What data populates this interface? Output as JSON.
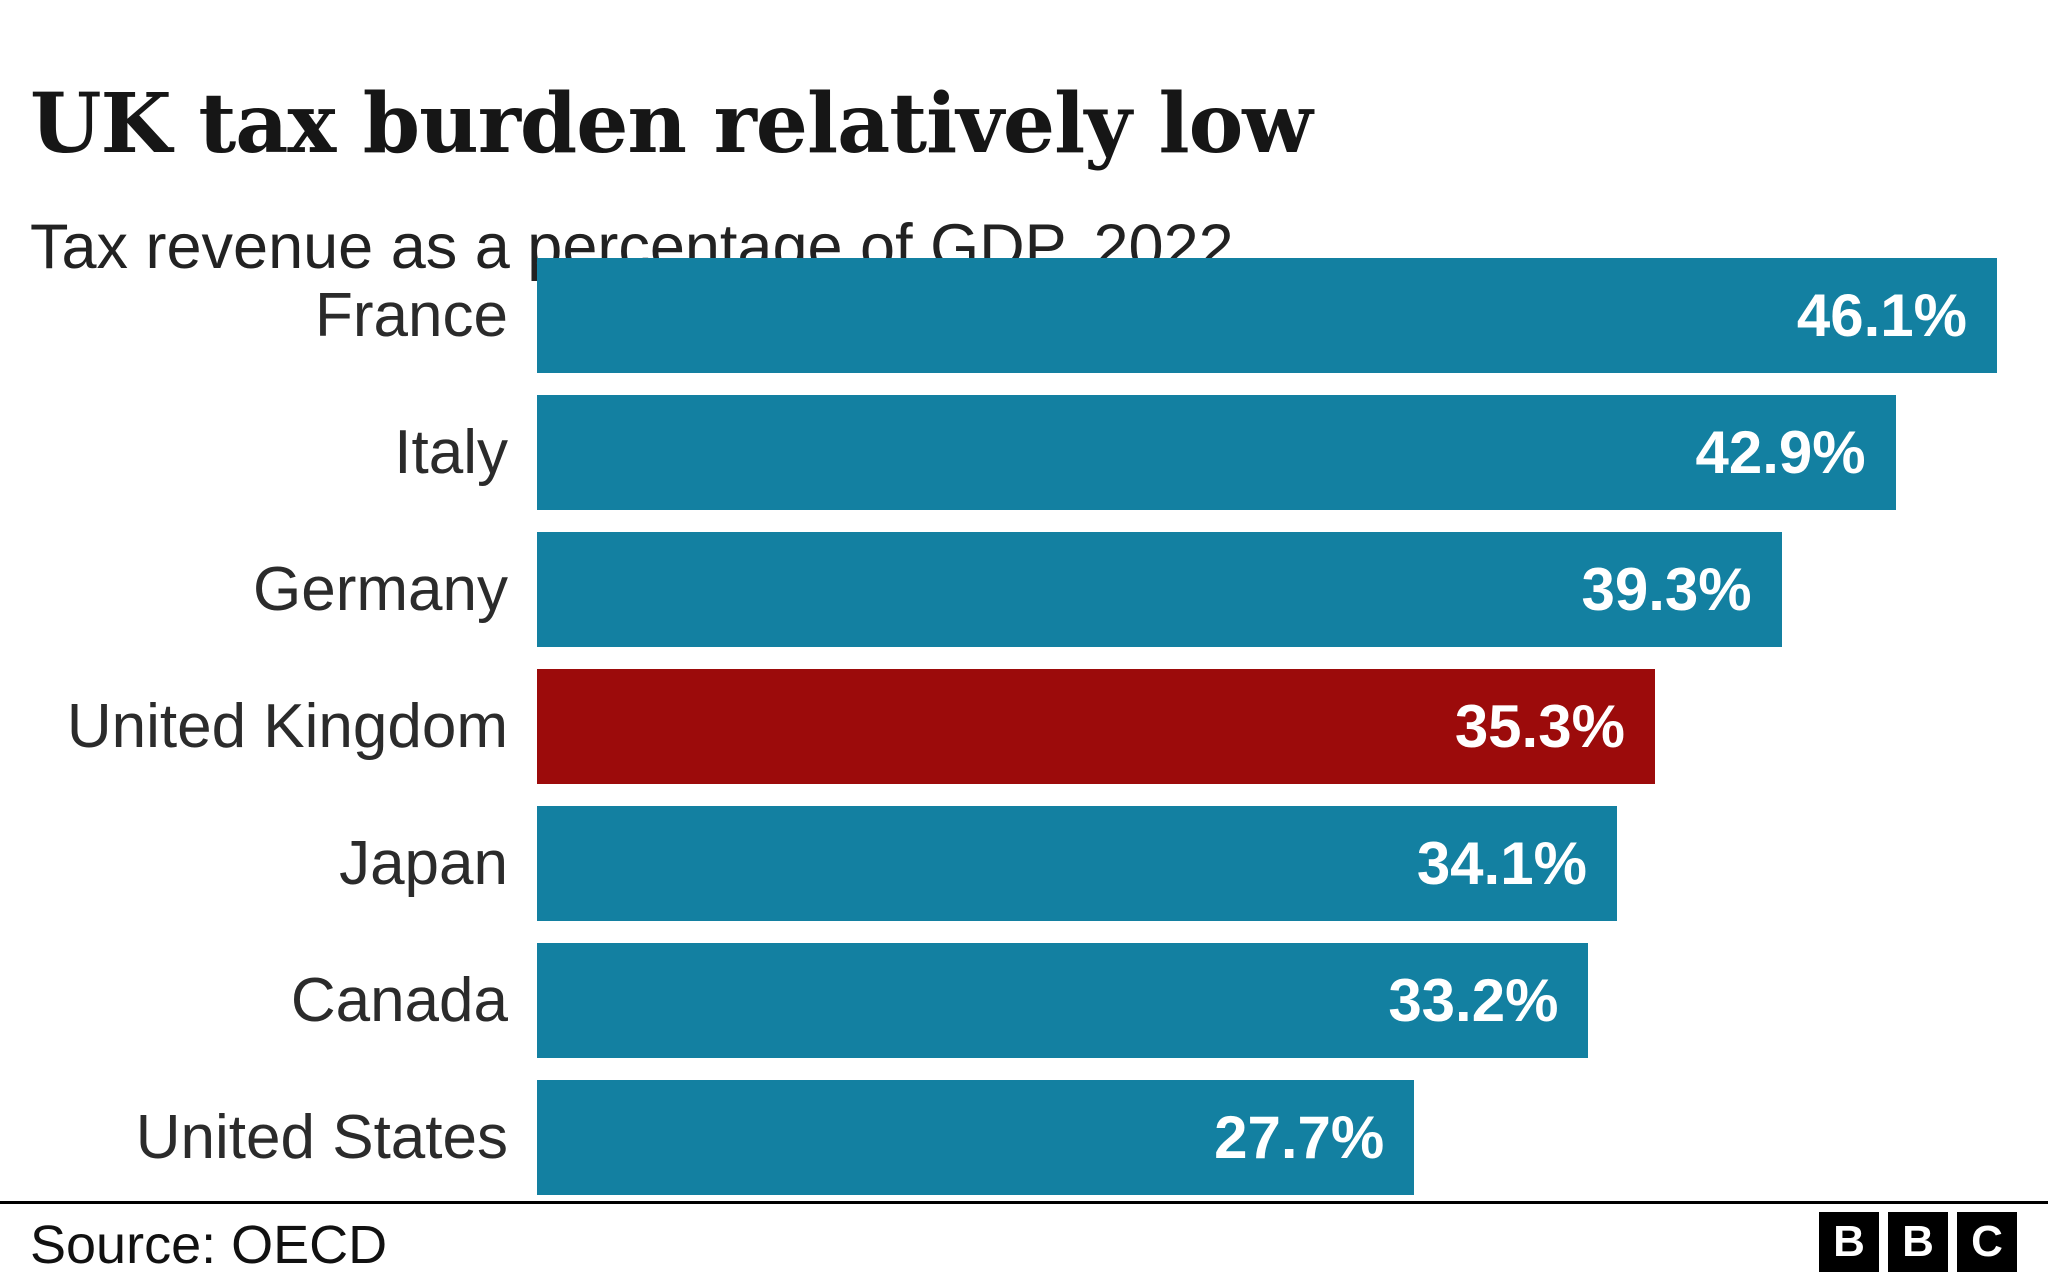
{
  "header": {
    "title": "UK tax burden relatively low",
    "subtitle": "Tax revenue as a percentage of GDP, 2022"
  },
  "chart_data": {
    "type": "bar",
    "orientation": "horizontal",
    "title": "UK tax burden relatively low",
    "subtitle": "Tax revenue as a percentage of GDP, 2022",
    "categories": [
      "France",
      "Italy",
      "Germany",
      "United Kingdom",
      "Japan",
      "Canada",
      "United States"
    ],
    "series": [
      {
        "name": "Tax revenue as a percentage of GDP, 2022",
        "values": [
          46.1,
          42.9,
          39.3,
          35.3,
          34.1,
          33.2,
          27.7
        ]
      }
    ],
    "value_labels": [
      "46.1%",
      "42.9%",
      "39.3%",
      "35.3%",
      "34.1%",
      "33.2%",
      "27.7%"
    ],
    "xlim": [
      0,
      46.1
    ],
    "grid": false,
    "legend": false,
    "highlight_index": 3,
    "highlight_category": "United Kingdom",
    "colors": {
      "bar": "#1380A1",
      "highlight": "#9C0B0B",
      "value_label": "#ffffff"
    }
  },
  "footer": {
    "source": "Source: OECD",
    "logo_letters": [
      "B",
      "B",
      "C"
    ]
  }
}
